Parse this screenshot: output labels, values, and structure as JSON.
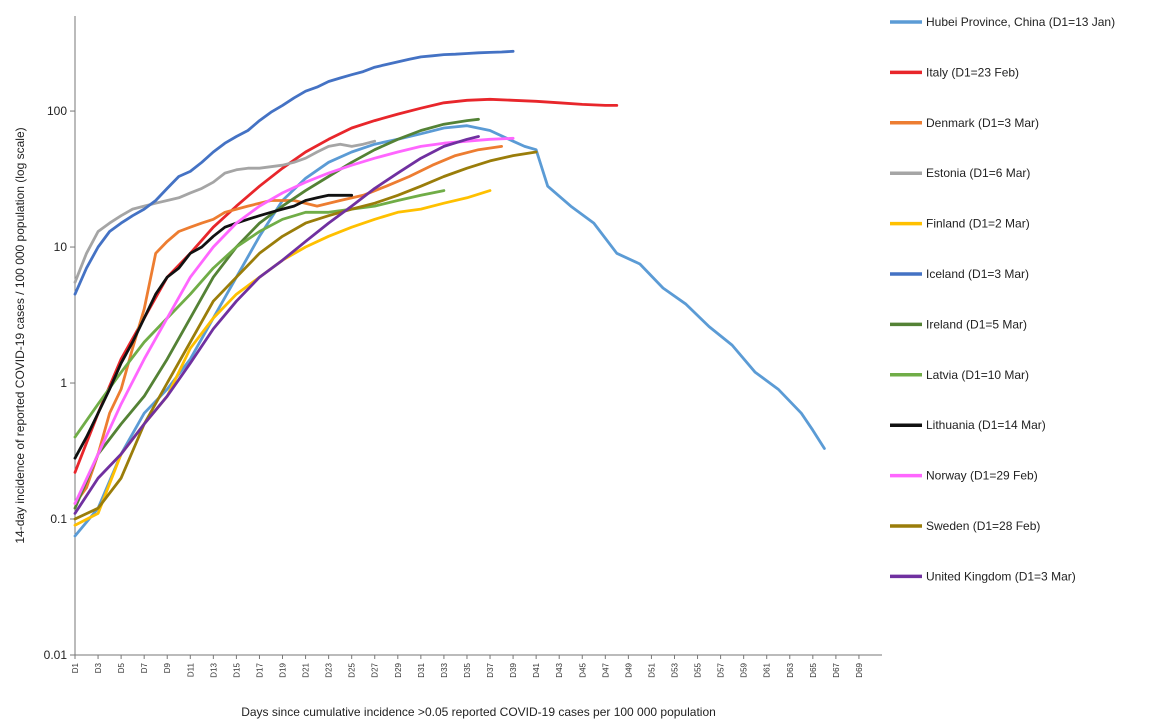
{
  "chart_data": {
    "type": "line",
    "title": "",
    "xlabel": "Days since cumulative incidence >0.05 reported COVID-19 cases per 100 000 population",
    "ylabel": "14-day incidence of reported COVID-19 cases / 100 000 population (log scale)",
    "y_scale": "log",
    "ylim": [
      0.01,
      500
    ],
    "y_ticks": [
      0.01,
      0.1,
      1,
      10,
      100
    ],
    "y_tick_labels": [
      "0.01",
      "0.1",
      "1",
      "10",
      "100"
    ],
    "x_tick_labels": [
      "D1",
      "D3",
      "D5",
      "D7",
      "D9",
      "D11",
      "D13",
      "D15",
      "D17",
      "D19",
      "D21",
      "D23",
      "D25",
      "D27",
      "D29",
      "D31",
      "D33",
      "D35",
      "D37",
      "D39",
      "D41",
      "D43",
      "D45",
      "D47",
      "D49",
      "D51",
      "D53",
      "D55",
      "D57",
      "D59",
      "D61",
      "D63",
      "D65",
      "D67",
      "D69"
    ],
    "xlim": [
      1,
      71
    ],
    "grid": false,
    "legend_position": "right",
    "series": [
      {
        "name": "Hubei Province, China  (D1=13 Jan)",
        "color": "#5b9bd5",
        "x": [
          1,
          3,
          5,
          7,
          9,
          11,
          13,
          15,
          17,
          19,
          21,
          23,
          25,
          27,
          29,
          31,
          33,
          35,
          37,
          39,
          40,
          41,
          42,
          44,
          46,
          48,
          50,
          52,
          54,
          56,
          58,
          60,
          62,
          64,
          65,
          66
        ],
        "y": [
          0.075,
          0.12,
          0.3,
          0.6,
          0.9,
          1.5,
          3,
          6,
          12,
          22,
          32,
          42,
          50,
          57,
          62,
          68,
          75,
          78,
          72,
          60,
          55,
          52,
          28,
          20,
          15,
          9,
          7.5,
          5,
          3.8,
          2.6,
          1.9,
          1.2,
          0.9,
          0.6,
          0.45,
          0.33
        ]
      },
      {
        "name": "Italy  (D1=23 Feb)",
        "color": "#e8262b",
        "x": [
          1,
          3,
          5,
          7,
          9,
          11,
          13,
          15,
          17,
          19,
          21,
          23,
          25,
          27,
          29,
          31,
          33,
          35,
          37,
          39,
          41,
          43,
          45,
          47,
          48
        ],
        "y": [
          0.22,
          0.6,
          1.5,
          3,
          6,
          9,
          14,
          20,
          28,
          38,
          50,
          62,
          75,
          85,
          95,
          105,
          115,
          120,
          122,
          120,
          118,
          115,
          112,
          110,
          110
        ]
      },
      {
        "name": "Denmark  (D1=3 Mar)",
        "color": "#ed7d31",
        "x": [
          1,
          2,
          3,
          4,
          5,
          6,
          7,
          8,
          9,
          10,
          11,
          12,
          13,
          14,
          16,
          18,
          20,
          22,
          24,
          26,
          28,
          30,
          32,
          34,
          36,
          38
        ],
        "y": [
          0.13,
          0.17,
          0.3,
          0.6,
          0.9,
          1.8,
          3.5,
          9,
          11,
          13,
          14,
          15,
          16,
          18,
          20,
          22,
          22,
          20,
          22,
          24,
          28,
          33,
          40,
          47,
          52,
          55
        ]
      },
      {
        "name": "Estonia  (D1=6 Mar)",
        "color": "#a5a5a5",
        "x": [
          1,
          2,
          3,
          4,
          5,
          6,
          7,
          8,
          9,
          10,
          11,
          12,
          13,
          14,
          15,
          16,
          17,
          18,
          19,
          20,
          21,
          22,
          23,
          24,
          25,
          26,
          27
        ],
        "y": [
          5.5,
          9,
          13,
          15,
          17,
          19,
          20,
          21,
          22,
          23,
          25,
          27,
          30,
          35,
          37,
          38,
          38,
          39,
          40,
          42,
          45,
          50,
          55,
          57,
          55,
          57,
          60
        ]
      },
      {
        "name": "Finland  (D1=2 Mar)",
        "color": "#ffc000",
        "x": [
          1,
          3,
          5,
          7,
          9,
          11,
          13,
          15,
          17,
          19,
          21,
          23,
          25,
          27,
          29,
          31,
          33,
          35,
          37
        ],
        "y": [
          0.09,
          0.11,
          0.3,
          0.5,
          0.8,
          1.8,
          3,
          4.5,
          6,
          8,
          10,
          12,
          14,
          16,
          18,
          19,
          21,
          23,
          26
        ]
      },
      {
        "name": "Iceland  (D1=3 Mar)",
        "color": "#4472c4",
        "x": [
          1,
          2,
          3,
          4,
          5,
          6,
          7,
          8,
          9,
          10,
          11,
          12,
          13,
          14,
          15,
          16,
          17,
          18,
          19,
          20,
          21,
          22,
          23,
          24,
          25,
          26,
          27,
          28,
          29,
          30,
          31,
          32,
          33,
          34,
          35,
          36,
          37,
          38,
          39
        ],
        "y": [
          4.5,
          7,
          10,
          13,
          15,
          17,
          19,
          22,
          27,
          33,
          36,
          42,
          50,
          58,
          65,
          72,
          85,
          98,
          110,
          125,
          140,
          150,
          165,
          175,
          185,
          195,
          210,
          220,
          230,
          240,
          250,
          255,
          260,
          262,
          265,
          268,
          270,
          272,
          275
        ]
      },
      {
        "name": "Ireland  (D1=5 Mar)",
        "color": "#548235",
        "x": [
          1,
          3,
          5,
          7,
          9,
          11,
          13,
          15,
          17,
          19,
          21,
          23,
          25,
          27,
          29,
          31,
          33,
          35,
          36
        ],
        "y": [
          0.12,
          0.3,
          0.5,
          0.8,
          1.5,
          3,
          6,
          10,
          15,
          20,
          26,
          33,
          42,
          52,
          62,
          72,
          80,
          85,
          87
        ]
      },
      {
        "name": "Latvia  (D1=10 Mar)",
        "color": "#70ad47",
        "x": [
          1,
          3,
          5,
          7,
          9,
          11,
          13,
          15,
          17,
          19,
          21,
          23,
          25,
          27,
          29,
          31,
          33
        ],
        "y": [
          0.4,
          0.7,
          1.2,
          2,
          3,
          4.5,
          7,
          10,
          13,
          16,
          18,
          18,
          19,
          20,
          22,
          24,
          26
        ]
      },
      {
        "name": "Lithuania  (D1=14 Mar)",
        "color": "#111111",
        "x": [
          1,
          2,
          3,
          4,
          5,
          6,
          7,
          8,
          9,
          10,
          11,
          12,
          13,
          14,
          15,
          16,
          17,
          18,
          19,
          20,
          21,
          22,
          23,
          24,
          25
        ],
        "y": [
          0.28,
          0.4,
          0.6,
          0.9,
          1.4,
          2,
          3,
          4.5,
          6,
          7,
          9,
          10,
          12,
          14,
          15,
          16,
          17,
          18,
          19,
          20,
          22,
          23,
          24,
          24,
          24
        ]
      },
      {
        "name": "Norway  (D1=29 Feb)",
        "color": "#ff66ff",
        "x": [
          1,
          3,
          5,
          7,
          9,
          11,
          13,
          15,
          17,
          19,
          21,
          23,
          25,
          27,
          29,
          31,
          33,
          35,
          37,
          39
        ],
        "y": [
          0.13,
          0.3,
          0.7,
          1.5,
          3,
          6,
          10,
          15,
          20,
          25,
          30,
          35,
          40,
          45,
          50,
          55,
          58,
          60,
          62,
          63
        ]
      },
      {
        "name": "Sweden  (D1=28 Feb)",
        "color": "#9a7d0a",
        "x": [
          1,
          3,
          5,
          7,
          9,
          11,
          13,
          15,
          17,
          19,
          21,
          23,
          25,
          27,
          29,
          31,
          33,
          35,
          37,
          39,
          41
        ],
        "y": [
          0.1,
          0.12,
          0.2,
          0.5,
          1,
          2,
          4,
          6,
          9,
          12,
          15,
          17,
          19,
          21,
          24,
          28,
          33,
          38,
          43,
          47,
          50
        ]
      },
      {
        "name": "United Kingdom  (D1=3 Mar)",
        "color": "#7030a0",
        "x": [
          1,
          3,
          5,
          7,
          9,
          11,
          13,
          15,
          17,
          19,
          21,
          23,
          25,
          27,
          29,
          31,
          33,
          35,
          36
        ],
        "y": [
          0.11,
          0.2,
          0.3,
          0.5,
          0.8,
          1.4,
          2.5,
          4,
          6,
          8,
          11,
          15,
          20,
          27,
          35,
          45,
          55,
          62,
          65
        ]
      }
    ]
  }
}
